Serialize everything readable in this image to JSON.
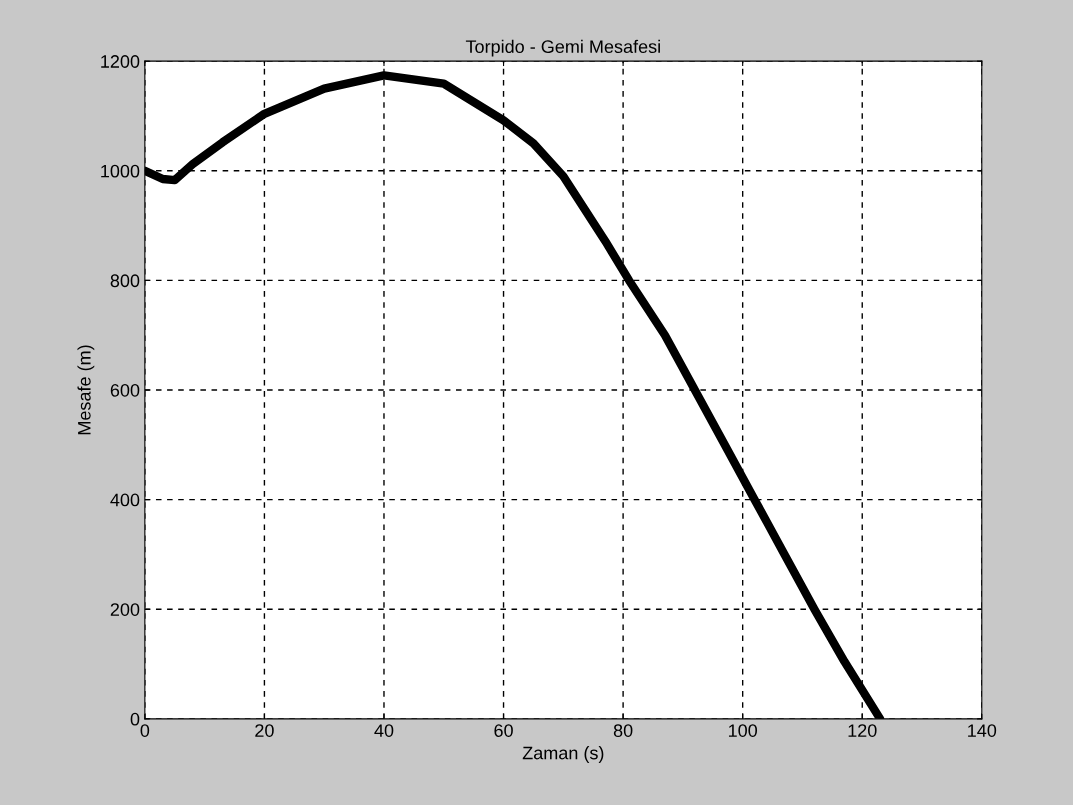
{
  "chart_data": {
    "type": "line",
    "title": "Torpido - Gemi Mesafesi",
    "xlabel": "Zaman (s)",
    "ylabel": "Mesafe (m)",
    "x": [
      0,
      3,
      5,
      8,
      13,
      20,
      30,
      40,
      50,
      60,
      65,
      70,
      77,
      81,
      87,
      92,
      97,
      102,
      107,
      112,
      117,
      123
    ],
    "series": [
      {
        "color": "#000000",
        "values": [
          1000,
          985,
          983,
          1012,
          1052,
          1104,
          1150,
          1174,
          1159,
          1092,
          1050,
          990,
          872,
          800,
          700,
          600,
          500,
          400,
          300,
          200,
          105,
          0
        ]
      }
    ],
    "xlim": [
      0,
      140
    ],
    "xticks": [
      0,
      20,
      40,
      60,
      80,
      100,
      120,
      140
    ],
    "ylim": [
      0,
      1200
    ],
    "yticks": [
      0,
      200,
      400,
      600,
      800,
      1000,
      1200
    ],
    "grid": true,
    "line_style": "solid",
    "marker": "none"
  }
}
